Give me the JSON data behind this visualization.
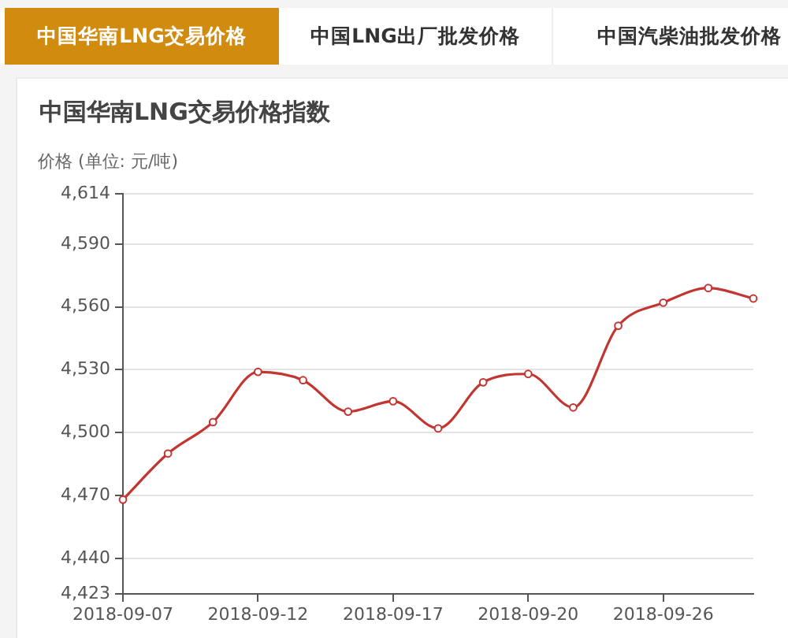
{
  "chart_data": {
    "type": "line",
    "title": "中国华南LNG交易价格指数",
    "ylabel": "价格 (单位: 元/吨)",
    "annotations": [
      "中国华南LNG交易价格",
      "中国LNG出厂批发价格",
      "中国汽柴油批发价格"
    ],
    "categories": [
      "2018-09-07",
      null,
      null,
      "2018-09-12",
      null,
      null,
      "2018-09-17",
      null,
      null,
      "2018-09-20",
      null,
      null,
      "2018-09-26",
      null,
      null
    ],
    "series": [
      {
        "color": "#c23531",
        "values": [
          4468,
          4490,
          4505,
          4529,
          4525,
          4510,
          4515,
          4502,
          4524,
          4528,
          4512,
          4551,
          4562,
          4569,
          4564
        ]
      }
    ],
    "ylim": [
      4423,
      4614
    ],
    "yticks": [
      {
        "value": 4423,
        "label": "4,423"
      },
      {
        "value": 4440,
        "label": "4,440"
      },
      {
        "value": 4470,
        "label": "4,470"
      },
      {
        "value": 4500,
        "label": "4,500"
      },
      {
        "value": 4530,
        "label": "4,530"
      },
      {
        "value": 4560,
        "label": "4,560"
      },
      {
        "value": 4590,
        "label": "4,590"
      },
      {
        "value": 4614,
        "label": "4,614"
      }
    ],
    "grid": "y",
    "marker": "circle",
    "line_style": "solid"
  }
}
